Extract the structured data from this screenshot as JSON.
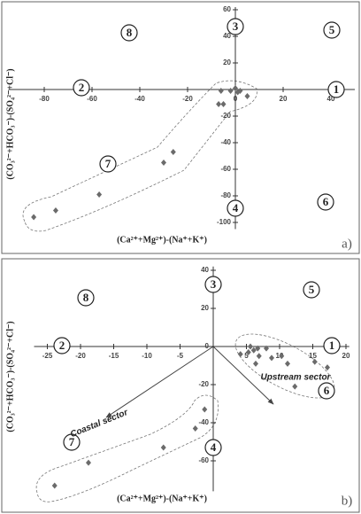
{
  "chart_data": [
    {
      "type": "scatter",
      "color": "#6b6b6b",
      "x": [
        -84.4,
        -75.2,
        -57,
        -30,
        -26,
        -6,
        -5,
        -7,
        -2,
        0,
        1,
        2,
        5
      ],
      "values": [
        -96,
        -91,
        -79,
        -55,
        -47,
        -1,
        -11,
        -11,
        -1,
        1,
        -2,
        -1,
        -5
      ],
      "xlim": [
        -95,
        50
      ],
      "ylim": [
        -105,
        62
      ],
      "xticks": [
        -80,
        -60,
        -40,
        -20,
        0,
        20,
        40
      ],
      "yticks": [
        -100,
        -80,
        -60,
        -40,
        -20,
        20,
        40,
        60
      ],
      "x_label": "(Ca²⁺+Mg²⁺)-(Na⁺+K⁺)",
      "y_label": "(CO₃²⁻+HCO₃⁻)-(SO₄²⁻+Cl⁻)",
      "zones": [
        "8",
        "3",
        "5",
        "2",
        "1",
        "7",
        "4",
        "6"
      ],
      "panel_label": "a)"
    },
    {
      "type": "scatter",
      "color": "#6b6b6b",
      "x": [
        -23.9,
        -18.8,
        -7.5,
        -2.7,
        -1.3,
        4.1,
        5.3,
        5.6,
        6.1,
        6.7,
        6.9,
        6.4,
        8,
        8.8,
        10.3,
        11.2,
        12.3,
        15.3,
        17.2
      ],
      "values": [
        -73,
        -61,
        -53,
        -43,
        -33,
        -4,
        -3,
        0,
        -2,
        -1,
        -5,
        -9,
        -1,
        -6,
        -5,
        -9,
        -21,
        -8,
        -11
      ],
      "xlim": [
        -27,
        20.5
      ],
      "ylim": [
        -76,
        42
      ],
      "xticks": [
        -25,
        -20,
        -15,
        -10,
        -5,
        5,
        10,
        15,
        20
      ],
      "yticks": [
        -60,
        -40,
        -20,
        0,
        20,
        40
      ],
      "x_label": "(Ca²⁺+Mg²⁺)-(Na⁺+K⁺)",
      "y_label": "(CO₃²⁻+HCO₃⁻)-(SO₄²⁻+Cl⁻)",
      "zones": [
        "8",
        "3",
        "5",
        "2",
        "1",
        "7",
        "4",
        "6"
      ],
      "annotations": [
        "Upstream sector",
        "Coastal sector"
      ],
      "panel_label": "b)"
    }
  ]
}
